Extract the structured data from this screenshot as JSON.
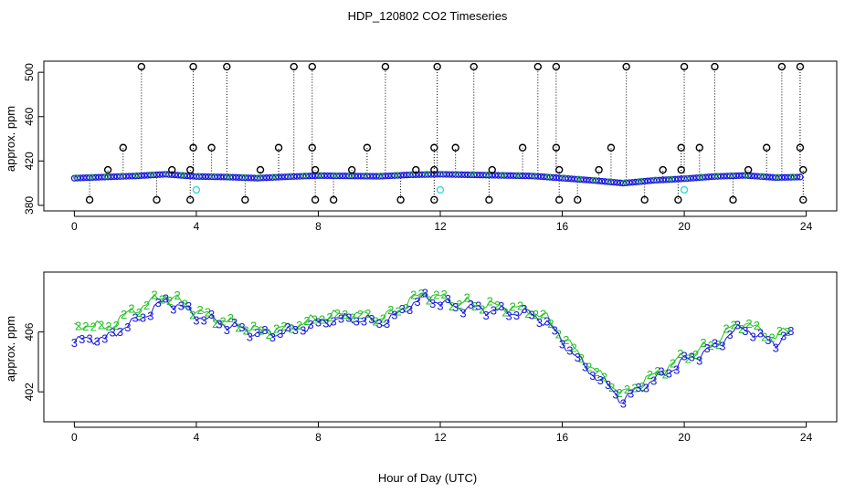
{
  "chart_data": [
    {
      "type": "scatter",
      "title": "HDP_120802  CO2 Timeseries",
      "xlabel": "",
      "ylabel": "approx. ppm",
      "xlim": [
        -1,
        25
      ],
      "ylim": [
        375,
        510
      ],
      "xticks": [
        0,
        4,
        8,
        12,
        16,
        20,
        24
      ],
      "xtick_labels": [
        "0",
        "4",
        "8",
        "12",
        "16",
        "20",
        "24"
      ],
      "yticks": [
        380,
        420,
        460,
        500
      ],
      "ytick_labels": [
        "380",
        "420",
        "460",
        "500"
      ],
      "baseline_series": {
        "name": "CO2 (blue circles)",
        "color": "#1a1adc",
        "x": [
          0,
          1,
          2,
          3,
          4,
          5,
          6,
          7,
          8,
          9,
          10,
          11,
          12,
          13,
          14,
          15,
          16,
          17,
          18,
          19,
          20,
          21,
          22,
          23,
          23.8
        ],
        "y": [
          404.5,
          405.5,
          406.5,
          408,
          406,
          405.5,
          404.5,
          405.8,
          406.8,
          406.5,
          406.2,
          407.5,
          408,
          407.5,
          407,
          406.5,
          404.5,
          402.5,
          400,
          402.5,
          404,
          406,
          407,
          405,
          405.5
        ]
      },
      "high_spikes": {
        "name": "spikes to upper range (black circles)",
        "color": "#000000",
        "x": [
          2.2,
          3.9,
          5.0,
          7.2,
          7.8,
          10.2,
          11.9,
          13.1,
          15.2,
          15.8,
          18.1,
          20.0,
          21.0,
          23.2,
          23.8
        ],
        "y": [
          505,
          505,
          505,
          505,
          505,
          505,
          505,
          505,
          505,
          505,
          505,
          505,
          505,
          505,
          505
        ]
      },
      "mid_spikes": {
        "name": "spikes to 432 (black circles)",
        "color": "#000000",
        "x": [
          1.6,
          3.9,
          4.5,
          6.7,
          7.8,
          9.6,
          11.8,
          12.5,
          14.7,
          15.8,
          17.6,
          19.9,
          20.5,
          22.7,
          23.8
        ],
        "y": [
          432,
          432,
          432,
          432,
          432,
          432,
          432,
          432,
          432,
          432,
          432,
          432,
          432,
          432,
          432
        ]
      },
      "low_spikes": {
        "name": "dips to 385 (black circles)",
        "color": "#000000",
        "x": [
          0.5,
          2.7,
          3.8,
          5.6,
          7.9,
          8.5,
          10.7,
          11.8,
          13.6,
          15.9,
          16.5,
          18.7,
          19.8,
          21.6,
          23.9
        ],
        "y": [
          385,
          385,
          385,
          385,
          385,
          385,
          385,
          385,
          385,
          385,
          385,
          385,
          385,
          385,
          385
        ]
      },
      "small_spikes": {
        "name": "small spikes to 412 (black circles)",
        "color": "#000000",
        "x": [
          1.1,
          3.2,
          3.8,
          6.1,
          7.9,
          9.1,
          11.2,
          11.8,
          13.7,
          15.9,
          17.2,
          19.3,
          19.9,
          22.1,
          23.9
        ],
        "y": [
          412,
          412,
          412,
          412,
          412,
          412,
          412,
          412,
          412,
          412,
          412,
          412,
          412,
          412,
          412
        ]
      },
      "cyan_points": {
        "name": "cyan circles",
        "color": "#38d8d8",
        "x": [
          4.0,
          12.0,
          20.0
        ],
        "y": [
          394,
          394,
          394
        ]
      }
    },
    {
      "type": "line",
      "title": "",
      "xlabel": "Hour of Day (UTC)",
      "ylabel": "approx. ppm",
      "xlim": [
        -1,
        25
      ],
      "ylim": [
        400,
        410
      ],
      "xticks": [
        0,
        4,
        8,
        12,
        16,
        20,
        24
      ],
      "xtick_labels": [
        "0",
        "4",
        "8",
        "12",
        "16",
        "20",
        "24"
      ],
      "yticks": [
        402,
        406
      ],
      "ytick_labels": [
        "402",
        "406"
      ],
      "series": [
        {
          "name": "3 (blue)",
          "label": "3",
          "color": "#1a1adc",
          "x": [
            0,
            0.5,
            1,
            1.5,
            2,
            2.5,
            3,
            3.5,
            4,
            4.5,
            5,
            5.5,
            6,
            6.5,
            7,
            7.5,
            8,
            8.5,
            9,
            9.5,
            10,
            10.5,
            11,
            11.5,
            12,
            12.5,
            13,
            13.5,
            14,
            14.5,
            15,
            15.5,
            16,
            16.5,
            17,
            17.5,
            18,
            18.5,
            19,
            19.5,
            20,
            20.5,
            21,
            21.5,
            22,
            22.5,
            23,
            23.5
          ],
          "y": [
            405.3,
            405.6,
            405.5,
            406.2,
            406.7,
            407.4,
            408.1,
            407.7,
            407.1,
            406.8,
            406.5,
            406.2,
            405.9,
            405.9,
            406.1,
            406.3,
            406.6,
            406.8,
            406.9,
            406.8,
            406.6,
            407,
            407.8,
            408.3,
            408,
            407.7,
            407.6,
            407.5,
            407.4,
            407.3,
            407.2,
            406.6,
            405.4,
            404.2,
            403.2,
            402.4,
            401.4,
            402.2,
            402.8,
            403.4,
            404.1,
            404.5,
            405,
            405.9,
            406.3,
            405.6,
            405.3,
            405.9
          ]
        },
        {
          "name": "2 (green)",
          "label": "2",
          "color": "#22c222",
          "x": [
            0,
            0.5,
            1,
            1.5,
            2,
            2.5,
            3,
            3.5,
            4,
            4.5,
            5,
            5.5,
            6,
            6.5,
            7,
            7.5,
            8,
            8.5,
            9,
            9.5,
            10,
            10.5,
            11,
            11.5,
            12,
            12.5,
            13,
            13.5,
            14,
            14.5,
            15,
            15.5,
            16,
            16.5,
            17,
            17.5,
            18,
            18.5,
            19,
            19.5,
            20,
            20.5,
            21,
            21.5,
            22,
            22.5,
            23,
            23.5
          ],
          "y": [
            406.2,
            406.6,
            406.2,
            406.9,
            407.5,
            408,
            408.5,
            408,
            407.4,
            407,
            406.7,
            406.4,
            406.1,
            406.1,
            406.3,
            406.6,
            406.9,
            407.1,
            407.2,
            407.1,
            406.9,
            407.3,
            408.1,
            408.6,
            408.3,
            408,
            407.9,
            407.8,
            407.7,
            407.6,
            407.4,
            406.9,
            405.7,
            404.6,
            403.5,
            402.7,
            401.8,
            402.5,
            403.1,
            403.7,
            404.4,
            404.8,
            405.3,
            406.2,
            406.7,
            406,
            405.7,
            406.2
          ]
        }
      ]
    }
  ]
}
